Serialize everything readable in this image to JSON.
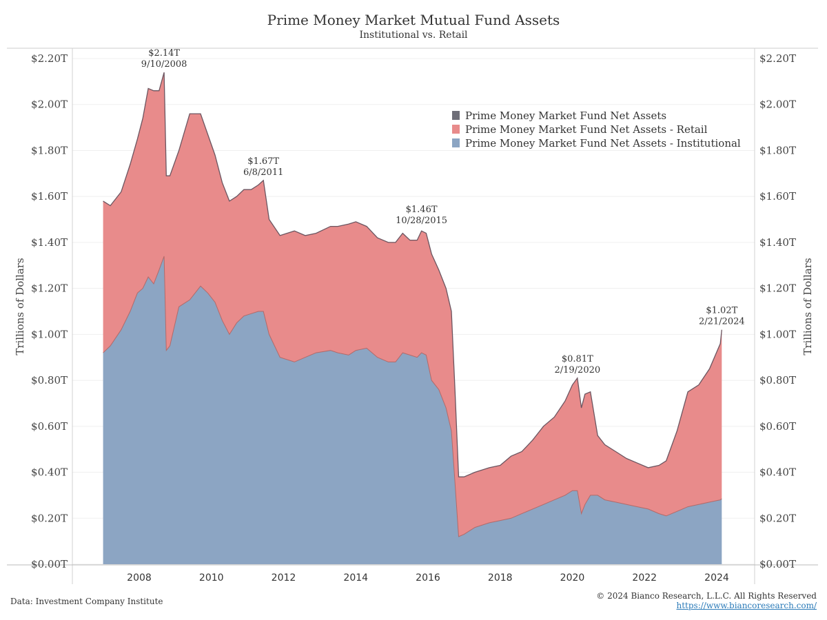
{
  "header": {
    "title": "Prime Money Market Mutual Fund Assets",
    "subtitle": "Institutional vs. Retail"
  },
  "footer": {
    "source": "Data: Investment Company Institute",
    "copyright": "© 2024 Bianco Research, L.L.C. All Rights Reserved",
    "url": "https://www.biancoresearch.com/"
  },
  "colors": {
    "total": "#6e6e78",
    "retail": "#e88b8b",
    "institutional": "#8ca5c3",
    "total_line": "#6b5560"
  },
  "chart_data": {
    "type": "area",
    "title": "Prime Money Market Mutual Fund Assets",
    "subtitle": "Institutional vs. Retail",
    "ylabel_left": "Trillions of Dollars",
    "ylabel_right": "Trillions of Dollars",
    "ylim": [
      0,
      2.2
    ],
    "xlim": [
      2006.0,
      2025.0
    ],
    "y_ticks": [
      "$0.00T",
      "$0.20T",
      "$0.40T",
      "$0.60T",
      "$0.80T",
      "$1.00T",
      "$1.20T",
      "$1.40T",
      "$1.60T",
      "$1.80T",
      "$2.00T",
      "$2.20T"
    ],
    "x_ticks": [
      "2008",
      "2010",
      "2012",
      "2014",
      "2016",
      "2018",
      "2020",
      "2022",
      "2024"
    ],
    "legend_position": "top-right",
    "legend": [
      "Prime Money Market Fund Net Assets",
      "Prime Money Market Fund Net Assets - Retail",
      "Prime Money Market Fund Net Assets - Institutional"
    ],
    "stacked": true,
    "x": [
      2007.0,
      2007.2,
      2007.5,
      2007.75,
      2007.95,
      2008.1,
      2008.25,
      2008.4,
      2008.55,
      2008.69,
      2008.75,
      2008.85,
      2009.1,
      2009.4,
      2009.7,
      2009.9,
      2010.1,
      2010.3,
      2010.5,
      2010.7,
      2010.9,
      2011.1,
      2011.3,
      2011.44,
      2011.6,
      2011.9,
      2012.3,
      2012.6,
      2012.9,
      2013.3,
      2013.5,
      2013.8,
      2014.0,
      2014.3,
      2014.6,
      2014.9,
      2015.1,
      2015.3,
      2015.5,
      2015.7,
      2015.82,
      2015.95,
      2016.1,
      2016.3,
      2016.5,
      2016.65,
      2016.75,
      2016.85,
      2017.0,
      2017.3,
      2017.7,
      2018.0,
      2018.3,
      2018.6,
      2018.9,
      2019.2,
      2019.5,
      2019.8,
      2020.0,
      2020.14,
      2020.25,
      2020.35,
      2020.5,
      2020.7,
      2020.9,
      2021.2,
      2021.5,
      2021.8,
      2022.1,
      2022.4,
      2022.6,
      2022.9,
      2023.2,
      2023.5,
      2023.8,
      2024.1,
      2024.14
    ],
    "series": [
      {
        "name": "Prime Money Market Fund Net Assets - Institutional",
        "values": [
          0.92,
          0.95,
          1.02,
          1.1,
          1.18,
          1.2,
          1.25,
          1.22,
          1.28,
          1.34,
          0.93,
          0.95,
          1.12,
          1.15,
          1.21,
          1.18,
          1.14,
          1.06,
          1.0,
          1.05,
          1.08,
          1.09,
          1.1,
          1.1,
          1.0,
          0.9,
          0.88,
          0.9,
          0.92,
          0.93,
          0.92,
          0.91,
          0.93,
          0.94,
          0.9,
          0.88,
          0.88,
          0.92,
          0.91,
          0.9,
          0.92,
          0.91,
          0.8,
          0.76,
          0.68,
          0.58,
          0.35,
          0.12,
          0.13,
          0.16,
          0.18,
          0.19,
          0.2,
          0.22,
          0.24,
          0.26,
          0.28,
          0.3,
          0.32,
          0.32,
          0.22,
          0.26,
          0.3,
          0.3,
          0.28,
          0.27,
          0.26,
          0.25,
          0.24,
          0.22,
          0.21,
          0.23,
          0.25,
          0.26,
          0.27,
          0.28,
          0.285
        ]
      },
      {
        "name": "Prime Money Market Fund Net Assets - Retail",
        "values": [
          0.66,
          0.61,
          0.6,
          0.64,
          0.67,
          0.74,
          0.82,
          0.84,
          0.78,
          0.8,
          0.76,
          0.74,
          0.68,
          0.81,
          0.75,
          0.69,
          0.64,
          0.6,
          0.58,
          0.55,
          0.55,
          0.54,
          0.55,
          0.57,
          0.5,
          0.53,
          0.57,
          0.53,
          0.52,
          0.54,
          0.55,
          0.57,
          0.56,
          0.53,
          0.52,
          0.52,
          0.52,
          0.52,
          0.5,
          0.51,
          0.53,
          0.53,
          0.55,
          0.52,
          0.52,
          0.52,
          0.4,
          0.26,
          0.25,
          0.24,
          0.24,
          0.24,
          0.27,
          0.27,
          0.3,
          0.34,
          0.36,
          0.41,
          0.46,
          0.49,
          0.46,
          0.48,
          0.45,
          0.26,
          0.24,
          0.22,
          0.2,
          0.19,
          0.18,
          0.21,
          0.24,
          0.35,
          0.5,
          0.52,
          0.58,
          0.68,
          0.735
        ]
      }
    ],
    "annotations": [
      {
        "value": "$2.14T",
        "date": "9/10/2008",
        "x": 2008.69,
        "y": 2.14
      },
      {
        "value": "$1.67T",
        "date": "6/8/2011",
        "x": 2011.44,
        "y": 1.67
      },
      {
        "value": "$1.46T",
        "date": "10/28/2015",
        "x": 2015.82,
        "y": 1.46
      },
      {
        "value": "$0.81T",
        "date": "2/19/2020",
        "x": 2020.14,
        "y": 0.81
      },
      {
        "value": "$1.02T",
        "date": "2/21/2024",
        "x": 2024.14,
        "y": 1.02
      }
    ]
  }
}
